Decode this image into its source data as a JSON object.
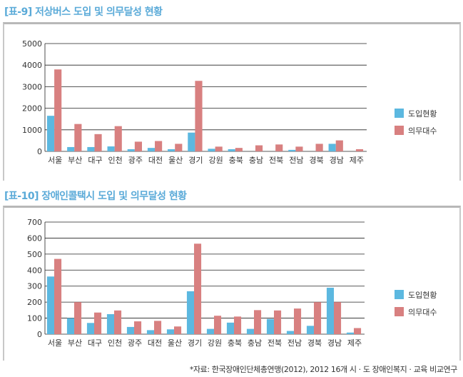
{
  "colors": {
    "intro": "#5cb8e0",
    "required": "#d88080",
    "title": "#5aaad8"
  },
  "chart_data": [
    {
      "type": "bar",
      "title": "[표-9] 저상버스 도입 및 의무달성 현황",
      "ylim": [
        0,
        5000
      ],
      "yticks": [
        0,
        1000,
        2000,
        3000,
        4000,
        5000
      ],
      "grid": true,
      "legend": "right",
      "categories": [
        "서울",
        "부산",
        "대구",
        "인천",
        "광주",
        "대전",
        "울산",
        "경기",
        "강원",
        "충북",
        "충남",
        "전북",
        "전남",
        "경북",
        "경남",
        "제주"
      ],
      "series": [
        {
          "name": "도입현황",
          "values": [
            1650,
            200,
            200,
            230,
            100,
            160,
            100,
            870,
            120,
            100,
            0,
            0,
            70,
            0,
            350,
            0
          ]
        },
        {
          "name": "의무대수",
          "values": [
            3800,
            1270,
            800,
            1170,
            450,
            480,
            350,
            3270,
            220,
            160,
            280,
            320,
            220,
            350,
            510,
            100
          ]
        }
      ]
    },
    {
      "type": "bar",
      "title": "[표-10] 장애인콜택시 도입 및 의무달성 현황",
      "ylim": [
        0,
        700
      ],
      "yticks": [
        0,
        100,
        200,
        300,
        400,
        500,
        600,
        700
      ],
      "grid": true,
      "legend": "right",
      "categories": [
        "서울",
        "부산",
        "대구",
        "인천",
        "광주",
        "대전",
        "울산",
        "경기",
        "강원",
        "충북",
        "충남",
        "전북",
        "전남",
        "경북",
        "경남",
        "제주"
      ],
      "series": [
        {
          "name": "도입현황",
          "values": [
            360,
            100,
            70,
            125,
            45,
            25,
            30,
            268,
            33,
            72,
            33,
            95,
            20,
            52,
            290,
            10
          ]
        },
        {
          "name": "의무대수",
          "values": [
            470,
            200,
            135,
            148,
            80,
            83,
            48,
            565,
            115,
            110,
            150,
            148,
            160,
            200,
            200,
            38
          ]
        }
      ]
    }
  ],
  "footnote": "*자료: 한국장애인단체총연맹(2012), 2012 16개 시 · 도 장애인복지 · 교육 비교연구"
}
